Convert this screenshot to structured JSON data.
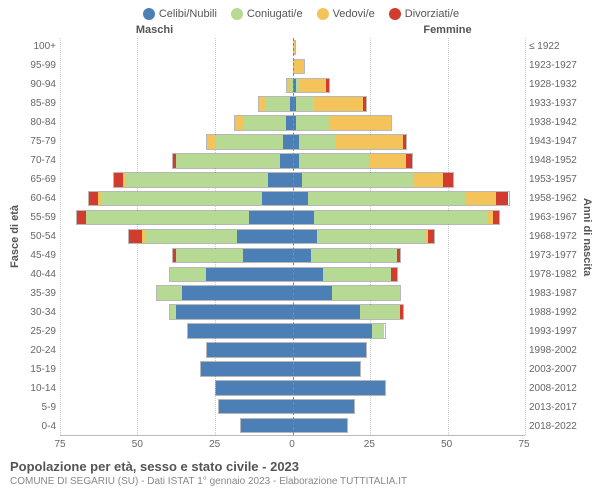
{
  "legend": [
    {
      "label": "Celibi/Nubili",
      "color": "#4c7fb6"
    },
    {
      "label": "Coniugati/e",
      "color": "#b6d993"
    },
    {
      "label": "Vedovi/e",
      "color": "#f4c45a"
    },
    {
      "label": "Divorziati/e",
      "color": "#d13c2e"
    }
  ],
  "genderLabels": {
    "male": "Maschi",
    "female": "Femmine"
  },
  "axisLabels": {
    "left": "Fasce di età",
    "right": "Anni di nascita"
  },
  "x": {
    "max": 75,
    "ticks": [
      75,
      50,
      25,
      0,
      25,
      50,
      75
    ]
  },
  "ageBands": [
    "100+",
    "95-99",
    "90-94",
    "85-89",
    "80-84",
    "75-79",
    "70-74",
    "65-69",
    "60-64",
    "55-59",
    "50-54",
    "45-49",
    "40-44",
    "35-39",
    "30-34",
    "25-29",
    "20-24",
    "15-19",
    "10-14",
    "5-9",
    "0-4"
  ],
  "birthBands": [
    "≤ 1922",
    "1923-1927",
    "1928-1932",
    "1933-1937",
    "1938-1942",
    "1943-1947",
    "1948-1952",
    "1953-1957",
    "1958-1962",
    "1963-1967",
    "1968-1972",
    "1973-1977",
    "1978-1982",
    "1983-1987",
    "1988-1992",
    "1993-1997",
    "1998-2002",
    "2003-2007",
    "2008-2012",
    "2013-2017",
    "2018-2022"
  ],
  "rows": [
    {
      "m": {
        "c": 0,
        "s": 0,
        "v": 0,
        "d": 0
      },
      "f": {
        "c": 0,
        "s": 0,
        "v": 1,
        "d": 0
      }
    },
    {
      "m": {
        "c": 0,
        "s": 0,
        "v": 0,
        "d": 0
      },
      "f": {
        "c": 0,
        "s": 0,
        "v": 4,
        "d": 0
      }
    },
    {
      "m": {
        "c": 0,
        "s": 1,
        "v": 1,
        "d": 0
      },
      "f": {
        "c": 1,
        "s": 1,
        "v": 9,
        "d": 1
      }
    },
    {
      "m": {
        "c": 1,
        "s": 8,
        "v": 2,
        "d": 0
      },
      "f": {
        "c": 1,
        "s": 6,
        "v": 16,
        "d": 1
      }
    },
    {
      "m": {
        "c": 2,
        "s": 14,
        "v": 3,
        "d": 0
      },
      "f": {
        "c": 1,
        "s": 11,
        "v": 20,
        "d": 0
      }
    },
    {
      "m": {
        "c": 3,
        "s": 22,
        "v": 3,
        "d": 0
      },
      "f": {
        "c": 2,
        "s": 12,
        "v": 22,
        "d": 1
      }
    },
    {
      "m": {
        "c": 4,
        "s": 34,
        "v": 0,
        "d": 1
      },
      "f": {
        "c": 2,
        "s": 23,
        "v": 12,
        "d": 2
      }
    },
    {
      "m": {
        "c": 8,
        "s": 46,
        "v": 1,
        "d": 3
      },
      "f": {
        "c": 3,
        "s": 36,
        "v": 10,
        "d": 3
      }
    },
    {
      "m": {
        "c": 10,
        "s": 52,
        "v": 1,
        "d": 3
      },
      "f": {
        "c": 5,
        "s": 51,
        "v": 10,
        "d": 4
      }
    },
    {
      "m": {
        "c": 14,
        "s": 53,
        "v": 0,
        "d": 3
      },
      "f": {
        "c": 7,
        "s": 56,
        "v": 2,
        "d": 2
      }
    },
    {
      "m": {
        "c": 18,
        "s": 30,
        "v": 1,
        "d": 4
      },
      "f": {
        "c": 8,
        "s": 35,
        "v": 1,
        "d": 2
      }
    },
    {
      "m": {
        "c": 16,
        "s": 22,
        "v": 0,
        "d": 1
      },
      "f": {
        "c": 6,
        "s": 28,
        "v": 0,
        "d": 1
      }
    },
    {
      "m": {
        "c": 28,
        "s": 12,
        "v": 0,
        "d": 0
      },
      "f": {
        "c": 10,
        "s": 22,
        "v": 0,
        "d": 2
      }
    },
    {
      "m": {
        "c": 36,
        "s": 8,
        "v": 0,
        "d": 0
      },
      "f": {
        "c": 13,
        "s": 22,
        "v": 0,
        "d": 0
      }
    },
    {
      "m": {
        "c": 38,
        "s": 2,
        "v": 0,
        "d": 0
      },
      "f": {
        "c": 22,
        "s": 13,
        "v": 0,
        "d": 1
      }
    },
    {
      "m": {
        "c": 34,
        "s": 0,
        "v": 0,
        "d": 0
      },
      "f": {
        "c": 26,
        "s": 4,
        "v": 0,
        "d": 0
      }
    },
    {
      "m": {
        "c": 28,
        "s": 0,
        "v": 0,
        "d": 0
      },
      "f": {
        "c": 24,
        "s": 0,
        "v": 0,
        "d": 0
      }
    },
    {
      "m": {
        "c": 30,
        "s": 0,
        "v": 0,
        "d": 0
      },
      "f": {
        "c": 22,
        "s": 0,
        "v": 0,
        "d": 0
      }
    },
    {
      "m": {
        "c": 25,
        "s": 0,
        "v": 0,
        "d": 0
      },
      "f": {
        "c": 30,
        "s": 0,
        "v": 0,
        "d": 0
      }
    },
    {
      "m": {
        "c": 24,
        "s": 0,
        "v": 0,
        "d": 0
      },
      "f": {
        "c": 20,
        "s": 0,
        "v": 0,
        "d": 0
      }
    },
    {
      "m": {
        "c": 17,
        "s": 0,
        "v": 0,
        "d": 0
      },
      "f": {
        "c": 18,
        "s": 0,
        "v": 0,
        "d": 0
      }
    }
  ],
  "footer": {
    "title": "Popolazione per età, sesso e stato civile - 2023",
    "subtitle": "COMUNE DI SEGARIU (SU) - Dati ISTAT 1° gennaio 2023 - Elaborazione TUTTITALIA.IT"
  },
  "colors": {
    "celibi": "#4c7fb6",
    "coniugati": "#b6d993",
    "vedovi": "#f4c45a",
    "divorziati": "#d13c2e"
  }
}
